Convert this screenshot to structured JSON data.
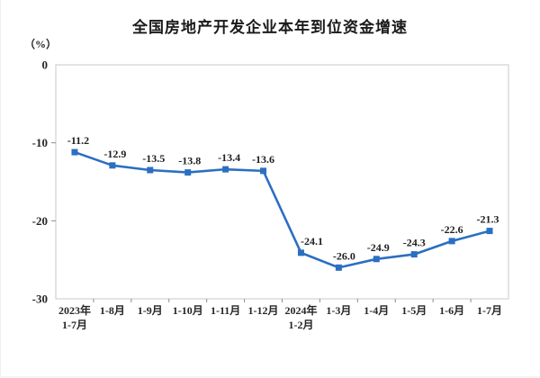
{
  "chart_data": {
    "type": "line",
    "title": "全国房地产开发企业本年到位资金增速",
    "unit_label": "（%）",
    "categories": [
      [
        "2023年",
        "1-7月"
      ],
      [
        "1-8月"
      ],
      [
        "1-9月"
      ],
      [
        "1-10月"
      ],
      [
        "1-11月"
      ],
      [
        "1-12月"
      ],
      [
        "2024年",
        "1-2月"
      ],
      [
        "1-3月"
      ],
      [
        "1-4月"
      ],
      [
        "1-5月"
      ],
      [
        "1-6月"
      ],
      [
        "1-7月"
      ]
    ],
    "values": [
      -11.2,
      -12.9,
      -13.5,
      -13.8,
      -13.4,
      -13.6,
      -24.1,
      -26.0,
      -24.9,
      -24.3,
      -22.6,
      -21.3
    ],
    "data_labels": [
      "-11.2",
      "-12.9",
      "-13.5",
      "-13.8",
      "-13.4",
      "-13.6",
      "-24.1",
      "-26.0",
      "-24.9",
      "-24.3",
      "-22.6",
      "-21.3"
    ],
    "ylim": [
      -30,
      0
    ],
    "y_ticks": [
      0,
      -10,
      -20,
      -30
    ],
    "y_tick_labels": [
      "0",
      "-10",
      "-20",
      "-30"
    ],
    "grid": false,
    "legend": "none",
    "marker": "square",
    "colors": {
      "line": "#2B6FC2",
      "marker": "#2B6FC2",
      "data_label": "#1F1F1F",
      "axis_line": "#C8C8C8",
      "tick": "#8C8C8C",
      "axis_text": "#262626",
      "title": "#1A1A1A",
      "background": "#FFFFFF"
    }
  }
}
